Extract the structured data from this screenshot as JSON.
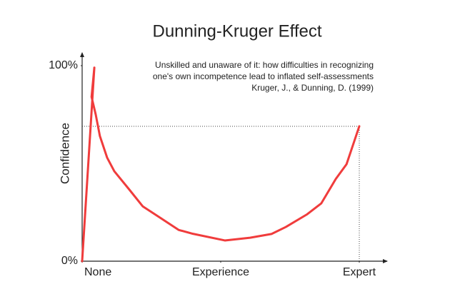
{
  "chart_data": {
    "type": "line",
    "title": "Dunning-Kruger Effect",
    "annotation": [
      "Unskilled and unaware of it: how difficulties in recognizing",
      "one's own incompetence lead to inflated self-assessments",
      "Kruger, J., & Dunning, D. (1999)"
    ],
    "y_label": "Confidence",
    "xlim": [
      0,
      100
    ],
    "ylim": [
      0,
      100
    ],
    "xticks": [
      {
        "value": 0,
        "label": "None"
      },
      {
        "value": 50,
        "label": "Experience"
      },
      {
        "value": 100,
        "label": "Expert"
      }
    ],
    "yticks": [
      {
        "value": 0,
        "label": "0%"
      },
      {
        "value": 100,
        "label": "100%"
      }
    ],
    "reference_y": 69,
    "x": [
      0,
      4.4,
      3.4,
      4.9,
      6.4,
      9.0,
      11.6,
      16.8,
      21.9,
      28.4,
      34.8,
      40,
      51.5,
      60.6,
      68.3,
      73.5,
      81.2,
      86.3,
      91.5,
      95.4,
      100
    ],
    "series": [
      {
        "name": "Confidence",
        "color": "#f03c3c",
        "values": [
          0,
          99,
          84,
          75,
          64,
          53,
          46,
          37,
          28,
          22,
          16,
          14,
          10.6,
          12,
          13.9,
          17.5,
          24,
          29.6,
          42,
          49.6,
          69
        ]
      }
    ]
  }
}
